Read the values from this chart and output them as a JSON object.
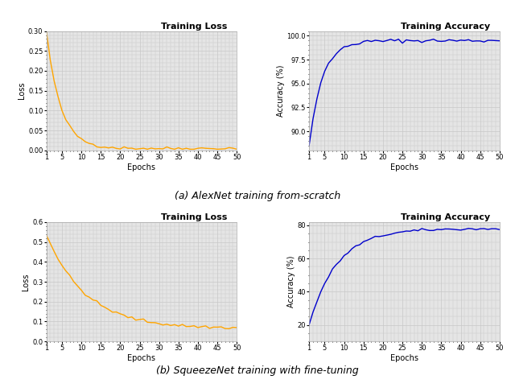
{
  "fig_width": 6.4,
  "fig_height": 4.82,
  "dpi": 100,
  "background_color": "#ffffff",
  "grid_color": "#c8c8c8",
  "caption_a": "(a) AlexNet training from-scratch",
  "caption_b": "(b) SqueezeNet training with fine-tuning",
  "caption_fontsize": 9,
  "alexnet_loss_title": "Training Loss",
  "alexnet_acc_title": "Training Accuracy",
  "squeezenet_loss_title": "Training Loss",
  "squeezenet_acc_title": "Training Accuracy",
  "loss_color": "#FFA500",
  "acc_color": "#0000CC",
  "line_width": 1.0,
  "xlabel": "Epochs",
  "ylabel_loss": "Loss",
  "ylabel_acc": "Accuracy (%)",
  "epochs": 50,
  "alexnet_loss_ylim": [
    0.0,
    0.3
  ],
  "alexnet_loss_yticks": [
    0.0,
    0.05,
    0.1,
    0.15,
    0.2,
    0.25,
    0.3
  ],
  "alexnet_acc_ylim": [
    88.0,
    100.5
  ],
  "alexnet_acc_yticks": [
    90.0,
    92.5,
    95.0,
    97.5,
    100.0
  ],
  "squeezenet_loss_ylim": [
    0.0,
    0.6
  ],
  "squeezenet_loss_yticks": [
    0.0,
    0.1,
    0.2,
    0.3,
    0.4,
    0.5,
    0.6
  ],
  "squeezenet_acc_ylim": [
    10.0,
    82.0
  ],
  "squeezenet_acc_yticks": [
    20,
    40,
    60,
    80
  ],
  "xticks": [
    1,
    5,
    10,
    15,
    20,
    25,
    30,
    35,
    40,
    45,
    50
  ],
  "title_fontsize": 8,
  "tick_fontsize": 6,
  "label_fontsize": 7,
  "ax_facecolor": "#e5e5e5"
}
